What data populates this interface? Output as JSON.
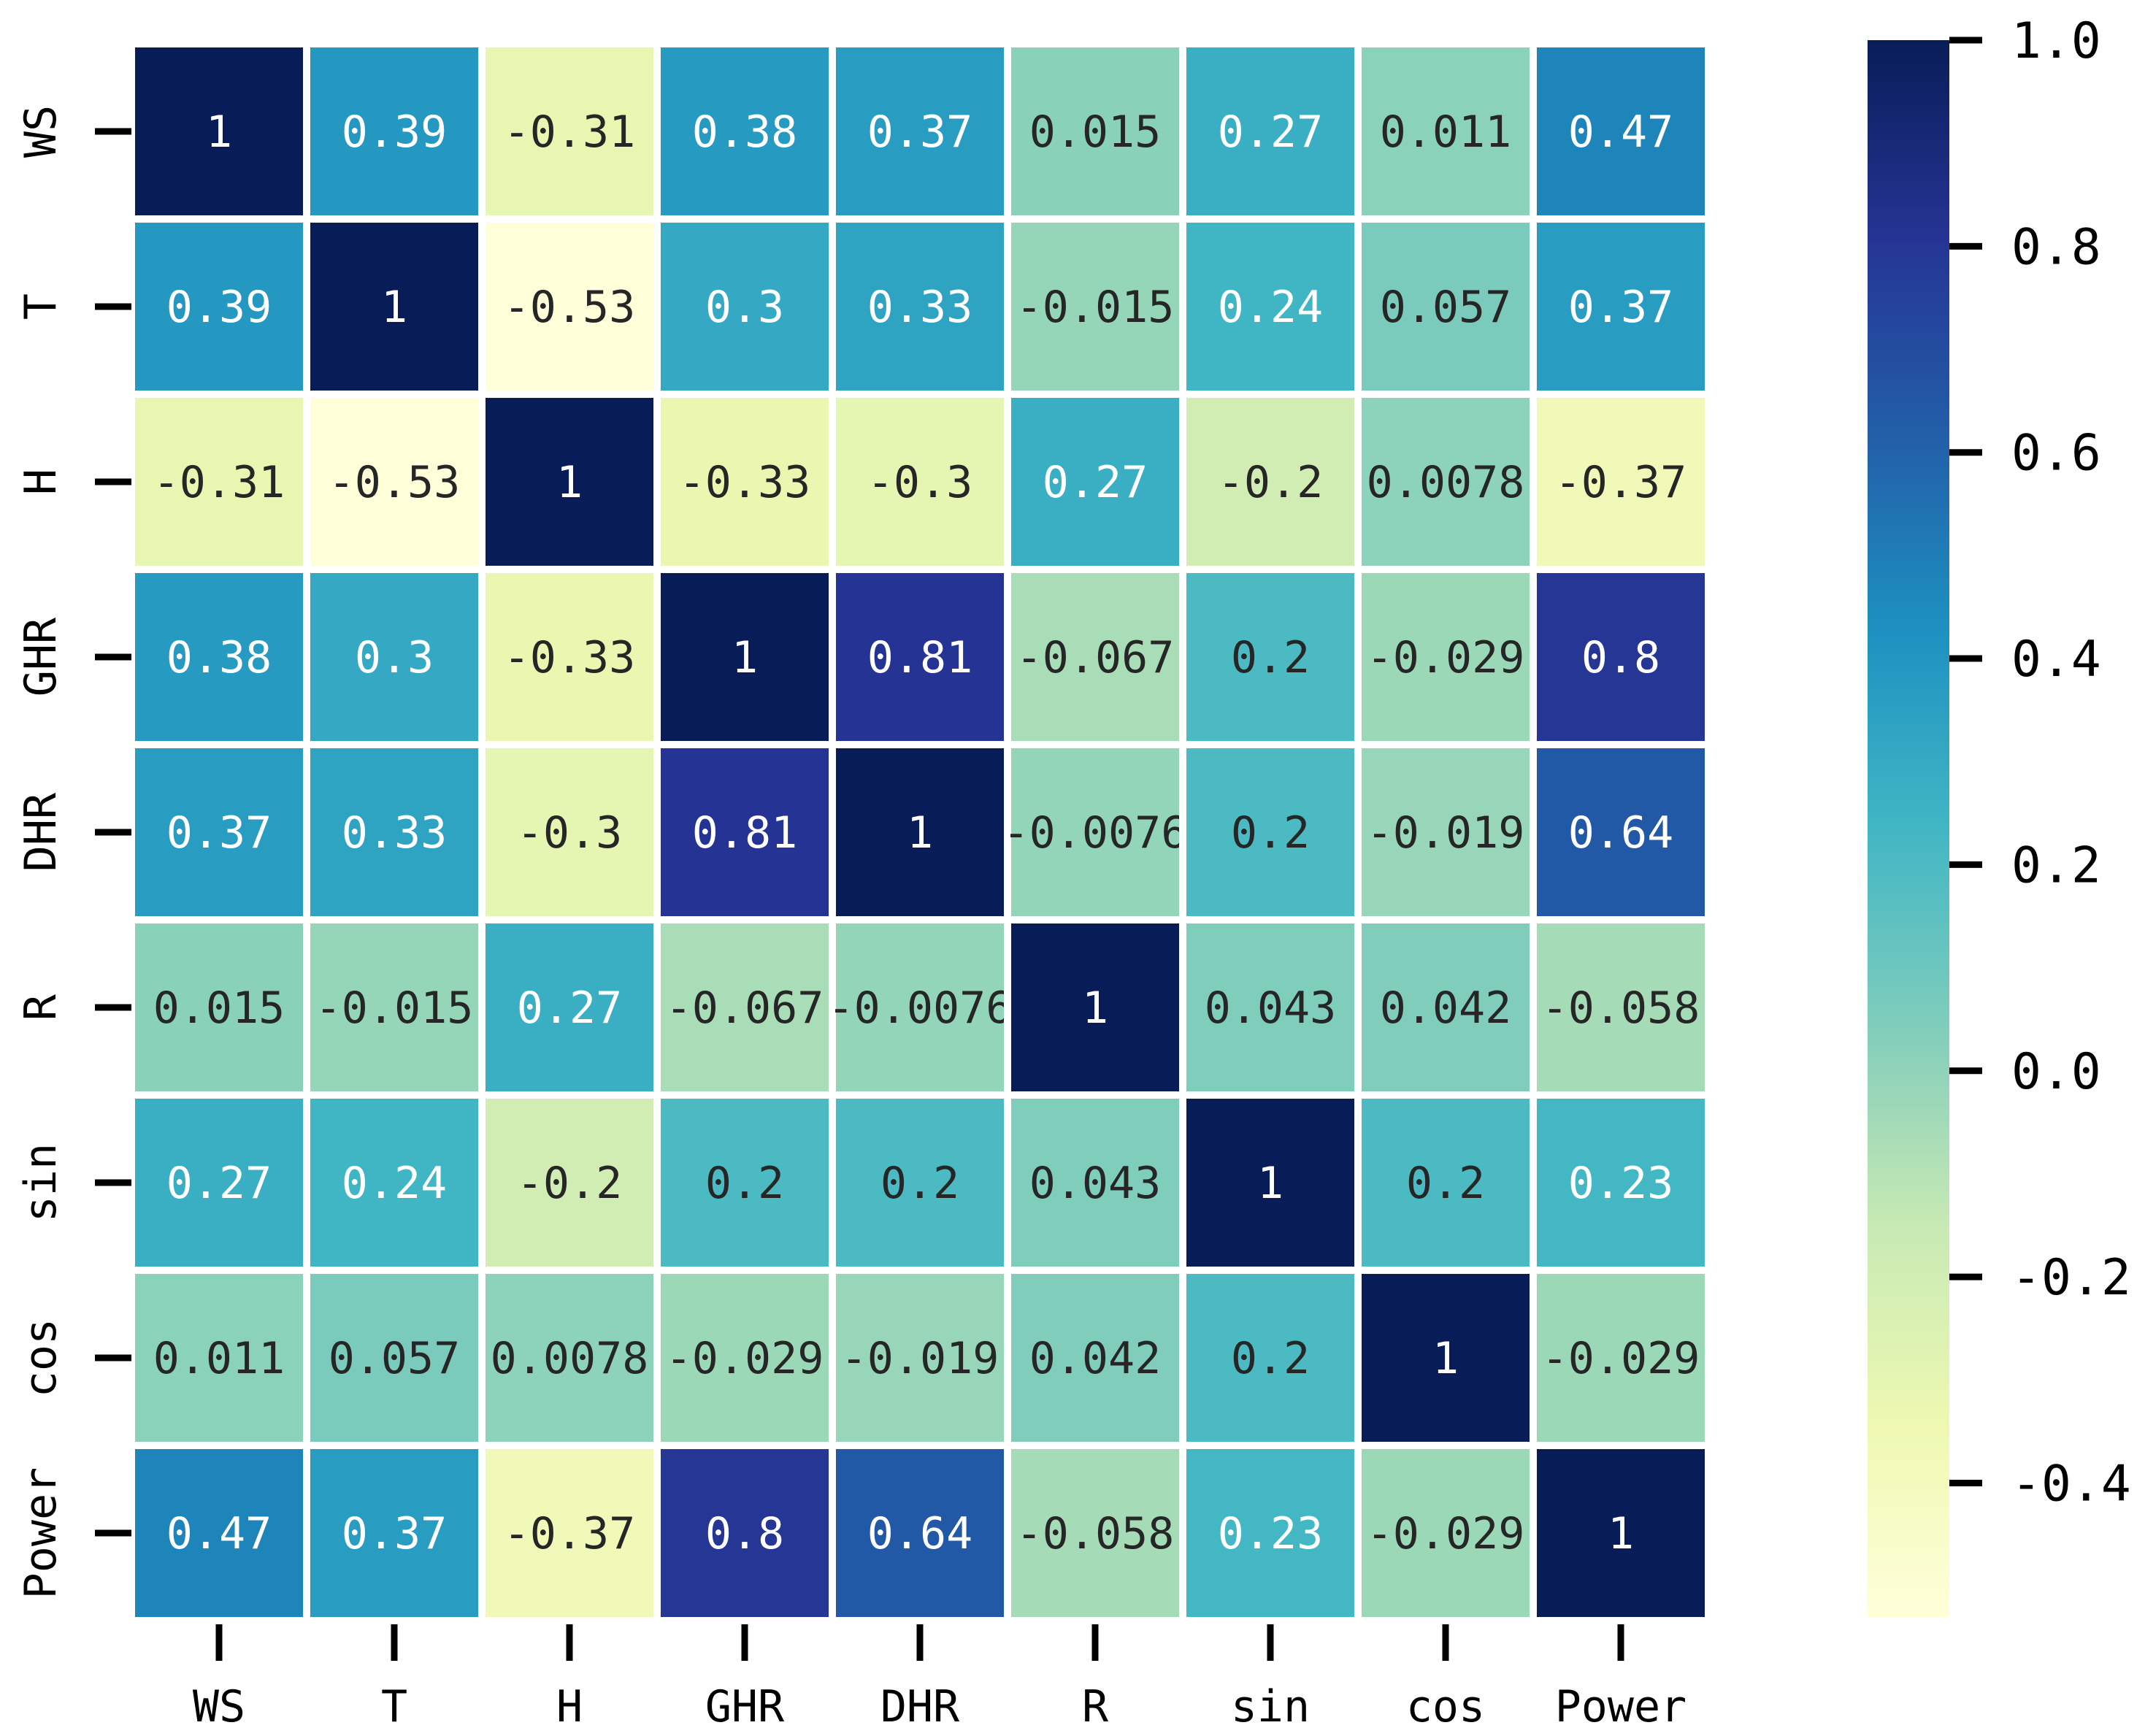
{
  "chart_data": {
    "type": "heatmap",
    "title": "",
    "xlabel": "",
    "ylabel": "",
    "x_categories": [
      "WS",
      "T",
      "H",
      "GHR",
      "DHR",
      "R",
      "sin",
      "cos",
      "Power"
    ],
    "y_categories": [
      "WS",
      "T",
      "H",
      "GHR",
      "DHR",
      "R",
      "sin",
      "cos",
      "Power"
    ],
    "values": [
      [
        1,
        0.39,
        -0.31,
        0.38,
        0.37,
        0.015,
        0.27,
        0.011,
        0.47
      ],
      [
        0.39,
        1,
        -0.53,
        0.3,
        0.33,
        -0.015,
        0.24,
        0.057,
        0.37
      ],
      [
        -0.31,
        -0.53,
        1,
        -0.33,
        -0.3,
        0.27,
        -0.2,
        0.0078,
        -0.37
      ],
      [
        0.38,
        0.3,
        -0.33,
        1,
        0.81,
        -0.067,
        0.2,
        -0.029,
        0.8
      ],
      [
        0.37,
        0.33,
        -0.3,
        0.81,
        1,
        -0.0076,
        0.2,
        -0.019,
        0.64
      ],
      [
        0.015,
        -0.015,
        0.27,
        -0.067,
        -0.0076,
        1,
        0.043,
        0.042,
        -0.058
      ],
      [
        0.27,
        0.24,
        -0.2,
        0.2,
        0.2,
        0.043,
        1,
        0.2,
        0.23
      ],
      [
        0.011,
        0.057,
        0.0078,
        -0.029,
        -0.019,
        0.042,
        0.2,
        1,
        -0.029
      ],
      [
        0.47,
        0.37,
        -0.37,
        0.8,
        0.64,
        -0.058,
        0.23,
        -0.029,
        1
      ]
    ],
    "value_labels": [
      [
        "1",
        "0.39",
        "-0.31",
        "0.38",
        "0.37",
        "0.015",
        "0.27",
        "0.011",
        "0.47"
      ],
      [
        "0.39",
        "1",
        "-0.53",
        "0.3",
        "0.33",
        "-0.015",
        "0.24",
        "0.057",
        "0.37"
      ],
      [
        "-0.31",
        "-0.53",
        "1",
        "-0.33",
        "-0.3",
        "0.27",
        "-0.2",
        "0.0078",
        "-0.37"
      ],
      [
        "0.38",
        "0.3",
        "-0.33",
        "1",
        "0.81",
        "-0.067",
        "0.2",
        "-0.029",
        "0.8"
      ],
      [
        "0.37",
        "0.33",
        "-0.3",
        "0.81",
        "1",
        "-0.0076",
        "0.2",
        "-0.019",
        "0.64"
      ],
      [
        "0.015",
        "-0.015",
        "0.27",
        "-0.067",
        "-0.0076",
        "1",
        "0.043",
        "0.042",
        "-0.058"
      ],
      [
        "0.27",
        "0.24",
        "-0.2",
        "0.2",
        "0.2",
        "0.043",
        "1",
        "0.2",
        "0.23"
      ],
      [
        "0.011",
        "0.057",
        "0.0078",
        "-0.029",
        "-0.019",
        "0.042",
        "0.2",
        "1",
        "-0.029"
      ],
      [
        "0.47",
        "0.37",
        "-0.37",
        "0.8",
        "0.64",
        "-0.058",
        "0.23",
        "-0.029",
        "1"
      ]
    ],
    "colormap": "YlGnBu",
    "colormap_stops": [
      "#ffffd9",
      "#edf8b1",
      "#c7e9b4",
      "#7fcdbb",
      "#41b6c4",
      "#1d91c0",
      "#225ea8",
      "#253494",
      "#081d58"
    ],
    "vmin": -0.53,
    "vmax": 1.0,
    "colorbar": {
      "ticks": [
        1.0,
        0.8,
        0.6,
        0.4,
        0.2,
        0.0,
        -0.2,
        -0.4
      ],
      "tick_labels": [
        "1.0",
        "0.8",
        "0.6",
        "0.4",
        "0.2",
        "0.0",
        "-0.2",
        "-0.4"
      ]
    },
    "text_color_dark": "#262626",
    "text_color_light": "#ffffff",
    "gridline_color": "#ffffff"
  }
}
